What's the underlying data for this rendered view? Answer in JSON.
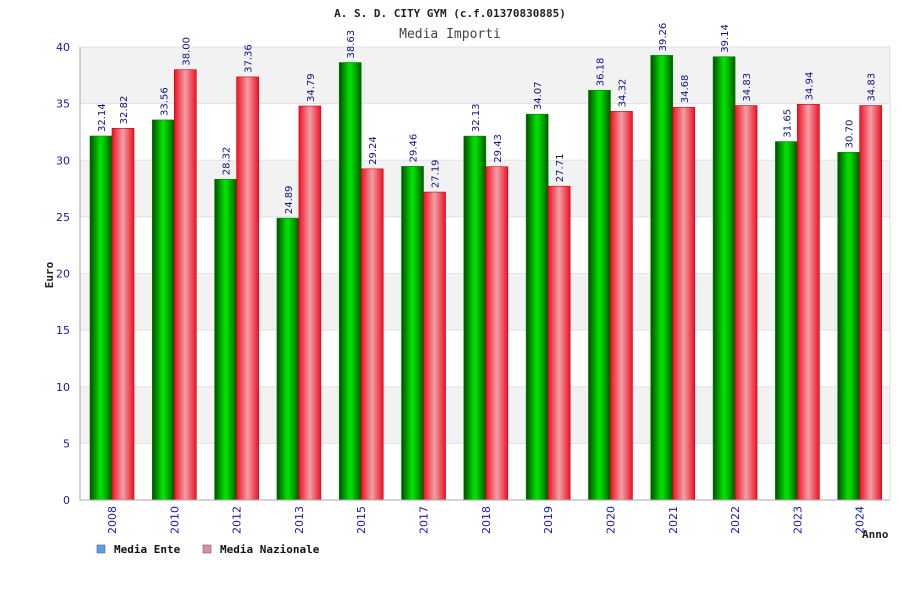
{
  "chart_data": {
    "type": "bar",
    "title": "A. S. D. CITY GYM (c.f.01370830885)",
    "subtitle": "Media Importi",
    "xlabel": "Anno",
    "ylabel": "Euro",
    "ylim": [
      0,
      40
    ],
    "yticks": [
      0,
      5,
      10,
      15,
      20,
      25,
      30,
      35,
      40
    ],
    "grid": true,
    "legend_position": "bottom-left",
    "categories": [
      "2008",
      "2010",
      "2012",
      "2013",
      "2015",
      "2017",
      "2018",
      "2019",
      "2020",
      "2021",
      "2022",
      "2023",
      "2024"
    ],
    "series": [
      {
        "name": "Media Ente",
        "color": "#00c000",
        "legend_color": "#5b9bf0",
        "values": [
          32.14,
          33.56,
          28.32,
          24.89,
          38.63,
          29.46,
          32.13,
          34.07,
          36.18,
          39.26,
          39.14,
          31.65,
          30.7
        ],
        "labels": [
          "32.14",
          "33.56",
          "28.32",
          "24.89",
          "38.63",
          "29.46",
          "32.13",
          "34.07",
          "36.18",
          "39.26",
          "39.14",
          "31.65",
          "30.70"
        ]
      },
      {
        "name": "Media Nazionale",
        "color": "#ee1122",
        "legend_color": "#e08ab0",
        "values": [
          32.82,
          38.0,
          37.36,
          34.79,
          29.24,
          27.19,
          29.43,
          27.71,
          34.32,
          34.68,
          34.83,
          34.94,
          34.83
        ],
        "labels": [
          "32.82",
          "38.00",
          "37.36",
          "34.79",
          "29.24",
          "27.19",
          "29.43",
          "27.71",
          "34.32",
          "34.68",
          "34.83",
          "34.94",
          "34.83"
        ]
      }
    ]
  }
}
